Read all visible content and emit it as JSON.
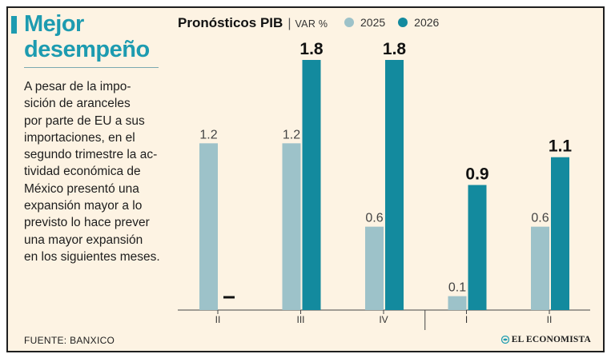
{
  "headline": "Mejor desempeño",
  "body_text": "A pesar de la impo-\nsición de aranceles\npor parte de EU a sus\nimportaciones, en el\nsegundo trimestre la ac-\ntividad económica de\nMéxico presentó una\nexpansión mayor a lo\nprevisto lo hace prever\nuna mayor expansión\nen los siguientes meses.",
  "source": "FUENTE: BANXICO",
  "brand": "EL ECONOMISTA",
  "colors": {
    "accent": "#1d9bb0",
    "series_2025": "#9dc2c9",
    "series_2026": "#138a9e",
    "background": "#fdf3e3",
    "axis": "#444444"
  },
  "chart_data": {
    "type": "bar",
    "title": "Pronósticos PIB",
    "unit": "VAR %",
    "categories": [
      "II",
      "III",
      "IV",
      "I",
      "II"
    ],
    "series": [
      {
        "name": "2025",
        "values": [
          1.2,
          1.2,
          0.6,
          0.1,
          0.6
        ]
      },
      {
        "name": "2026",
        "values": [
          null,
          1.8,
          1.8,
          0.9,
          1.1
        ]
      }
    ],
    "missing_marker": "–",
    "ylim": [
      0,
      1.8
    ],
    "grid": false,
    "legend": "top"
  }
}
